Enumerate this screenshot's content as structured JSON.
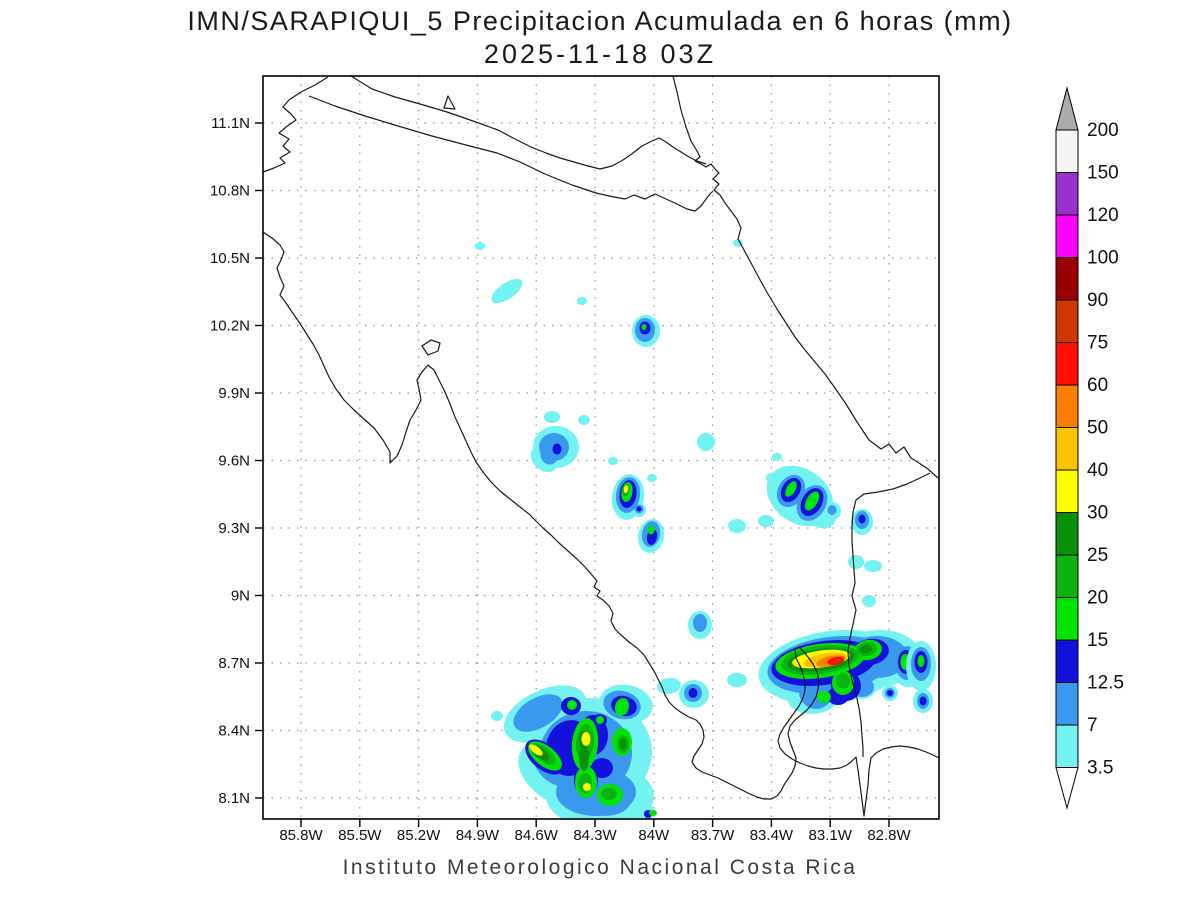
{
  "title": {
    "line1": "IMN/SARAPIQUI_5 Precipitacion Acumulada en 6 horas (mm)",
    "line2": "2025-11-18 03Z"
  },
  "footer": "Instituto Meteorologico Nacional Costa Rica",
  "axes": {
    "lat_labels": [
      "11.1N",
      "10.8N",
      "10.5N",
      "10.2N",
      "9.9N",
      "9.6N",
      "9.3N",
      "9N",
      "8.7N",
      "8.4N",
      "8.1N"
    ],
    "lon_labels": [
      "85.8W",
      "85.5W",
      "85.2W",
      "84.9W",
      "84.6W",
      "84.3W",
      "84W",
      "83.7W",
      "83.4W",
      "83.1W",
      "82.8W"
    ]
  },
  "colorbar": {
    "top_label": "200",
    "segments": [
      {
        "value": "3.5",
        "color": "#73F2F2"
      },
      {
        "value": "7",
        "color": "#3A99EE"
      },
      {
        "value": "12.5",
        "color": "#1212DC"
      },
      {
        "value": "15",
        "color": "#00E400"
      },
      {
        "value": "20",
        "color": "#0CB30C"
      },
      {
        "value": "25",
        "color": "#089108"
      },
      {
        "value": "30",
        "color": "#FFFF00"
      },
      {
        "value": "40",
        "color": "#FAC500"
      },
      {
        "value": "50",
        "color": "#FB7E00"
      },
      {
        "value": "60",
        "color": "#FF0F00"
      },
      {
        "value": "75",
        "color": "#CE3700"
      },
      {
        "value": "90",
        "color": "#9B0000"
      },
      {
        "value": "100",
        "color": "#FF00FF"
      },
      {
        "value": "120",
        "color": "#9932CD"
      },
      {
        "value": "150",
        "color": "#F5F5F5"
      }
    ],
    "arrow_top_color": "#ABABAB",
    "arrow_bottom_color": "#FFFFFF",
    "palette": {
      "c35": "#73F2F2",
      "b7": "#3A99EE",
      "db125": "#1212DC",
      "g15": "#00E400",
      "g20": "#0CB30C",
      "g25": "#089108",
      "y30": "#FFFF00",
      "y40": "#FAC500",
      "o50": "#FB7E00",
      "r60": "#FF0F00",
      "r75": "#CE3700",
      "r90": "#9B0000",
      "m100": "#FF00FF",
      "p120": "#9932CD",
      "w150": "#F5F5F5"
    }
  },
  "chart_data": {
    "type": "heatmap",
    "subtype": "filled-contour-precipitation-map",
    "title": "IMN/SARAPIQUI_5 Precipitacion Acumulada en 6 horas (mm)",
    "valid_time": "2025-11-18 03Z",
    "units": "mm",
    "region": {
      "lon_west": -86.0,
      "lon_east": -82.55,
      "lat_south": 8.0,
      "lat_north": 11.3
    },
    "xlabel_ticks": [
      "85.8W",
      "85.5W",
      "85.2W",
      "84.9W",
      "84.6W",
      "84.3W",
      "84W",
      "83.7W",
      "83.4W",
      "83.1W",
      "82.8W"
    ],
    "ylabel_ticks": [
      "11.1N",
      "10.8N",
      "10.5N",
      "10.2N",
      "9.9N",
      "9.6N",
      "9.3N",
      "9N",
      "8.7N",
      "8.4N",
      "8.1N"
    ],
    "contour_levels_mm": [
      3.5,
      7,
      12.5,
      15,
      20,
      25,
      30,
      40,
      50,
      60,
      75,
      90,
      100,
      120,
      150,
      200
    ],
    "grid": "dotted 0.3 degree",
    "legend_position": "right vertical colorbar",
    "cells": [
      {
        "name": "south-pacific-cluster",
        "lon": -84.45,
        "lat": 8.35,
        "max_mm": 35,
        "note": "large multi-core area, yellow cores 30-40"
      },
      {
        "name": "south-caribbean-cluster",
        "lon": -83.15,
        "lat": 8.7,
        "max_mm": 70,
        "note": "red core 60-75 with orange/gold ring"
      },
      {
        "name": "central-pacific-coast-cell",
        "lon": -84.13,
        "lat": 9.42,
        "max_mm": 32
      },
      {
        "name": "central-pacific-coast-cell-2",
        "lon": -84.0,
        "lat": 9.27,
        "max_mm": 18
      },
      {
        "name": "talamanca-twin-cells",
        "lon": -83.3,
        "lat": 9.45,
        "max_mm": 18
      },
      {
        "name": "northern-plains-spot",
        "lon": -84.05,
        "lat": 10.18,
        "max_mm": 16
      },
      {
        "name": "pacific-arc-spot",
        "lon": -84.5,
        "lat": 9.65,
        "max_mm": 13
      },
      {
        "name": "osa-area-spot",
        "lon": -84.03,
        "lat": 8.56,
        "max_mm": 13
      },
      {
        "name": "border-edge-cell",
        "lon": -82.7,
        "lat": 8.7,
        "max_mm": 17
      },
      {
        "name": "scattered-light-showers",
        "lon": -84.7,
        "lat": 10.3,
        "max_mm": 5
      }
    ]
  }
}
